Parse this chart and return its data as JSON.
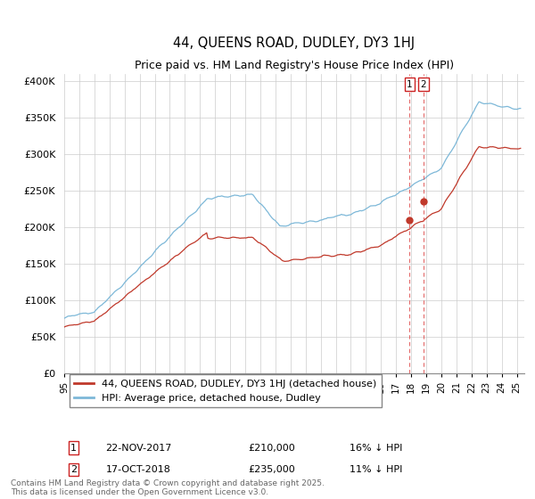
{
  "title": "44, QUEENS ROAD, DUDLEY, DY3 1HJ",
  "subtitle": "Price paid vs. HM Land Registry's House Price Index (HPI)",
  "ylim": [
    0,
    410000
  ],
  "yticks": [
    0,
    50000,
    100000,
    150000,
    200000,
    250000,
    300000,
    350000,
    400000
  ],
  "ytick_labels": [
    "£0",
    "£50K",
    "£100K",
    "£150K",
    "£200K",
    "£250K",
    "£300K",
    "£350K",
    "£400K"
  ],
  "hpi_color": "#7db8d8",
  "price_color": "#c0392b",
  "dashed_color": "#e05050",
  "legend_label_price": "44, QUEENS ROAD, DUDLEY, DY3 1HJ (detached house)",
  "legend_label_hpi": "HPI: Average price, detached house, Dudley",
  "transaction1_date": "22-NOV-2017",
  "transaction1_price": "£210,000",
  "transaction1_hpi": "16% ↓ HPI",
  "transaction2_date": "17-OCT-2018",
  "transaction2_price": "£235,000",
  "transaction2_hpi": "11% ↓ HPI",
  "marker1_x": 2017.9,
  "marker1_y": 210000,
  "marker2_x": 2018.8,
  "marker2_y": 235000,
  "footnote": "Contains HM Land Registry data © Crown copyright and database right 2025.\nThis data is licensed under the Open Government Licence v3.0.",
  "background_color": "#ffffff",
  "grid_color": "#cccccc",
  "xmin": 1995,
  "xmax": 2025.5
}
